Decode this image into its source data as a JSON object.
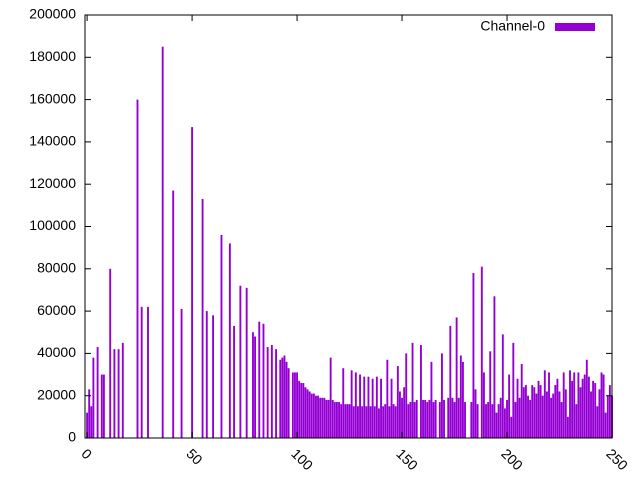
{
  "chart_data": {
    "type": "bar",
    "x": [
      0,
      1,
      2,
      3,
      4,
      5,
      6,
      7,
      8,
      9,
      10,
      11,
      12,
      13,
      14,
      15,
      16,
      17,
      18,
      19,
      20,
      21,
      22,
      23,
      24,
      25,
      26,
      27,
      28,
      29,
      30,
      31,
      32,
      33,
      34,
      35,
      36,
      37,
      38,
      39,
      40,
      41,
      42,
      43,
      44,
      45,
      46,
      47,
      48,
      49,
      50,
      51,
      52,
      53,
      54,
      55,
      56,
      57,
      58,
      59,
      60,
      61,
      62,
      63,
      64,
      65,
      66,
      67,
      68,
      69,
      70,
      71,
      72,
      73,
      74,
      75,
      76,
      77,
      78,
      79,
      80,
      81,
      82,
      83,
      84,
      85,
      86,
      87,
      88,
      89,
      90,
      91,
      92,
      93,
      94,
      95,
      96,
      97,
      98,
      99,
      100,
      101,
      102,
      103,
      104,
      105,
      106,
      107,
      108,
      109,
      110,
      111,
      112,
      113,
      114,
      115,
      116,
      117,
      118,
      119,
      120,
      121,
      122,
      123,
      124,
      125,
      126,
      127,
      128,
      129,
      130,
      131,
      132,
      133,
      134,
      135,
      136,
      137,
      138,
      139,
      140,
      141,
      142,
      143,
      144,
      145,
      146,
      147,
      148,
      149,
      150,
      151,
      152,
      153,
      154,
      155,
      156,
      157,
      158,
      159,
      160,
      161,
      162,
      163,
      164,
      165,
      166,
      167,
      168,
      169,
      170,
      171,
      172,
      173,
      174,
      175,
      176,
      177,
      178,
      179,
      180,
      181,
      182,
      183,
      184,
      185,
      186,
      187,
      188,
      189,
      190,
      191,
      192,
      193,
      194,
      195,
      196,
      197,
      198,
      199,
      200,
      201,
      202,
      203,
      204,
      205,
      206,
      207,
      208,
      209,
      210,
      211,
      212,
      213,
      214,
      215,
      216,
      217,
      218,
      219,
      220,
      221,
      222,
      223,
      224,
      225,
      226,
      227,
      228,
      229,
      230,
      231,
      232,
      233,
      234,
      235,
      236,
      237,
      238,
      239,
      240,
      241,
      242,
      243,
      244,
      245,
      246,
      247,
      248,
      249,
      250
    ],
    "series": [
      {
        "name": "Channel-0",
        "color": "#9400d3",
        "values": [
          12000,
          23000,
          15000,
          38000,
          0,
          43000,
          0,
          30000,
          30000,
          0,
          0,
          80000,
          0,
          42000,
          0,
          42000,
          0,
          45000,
          0,
          0,
          0,
          0,
          0,
          0,
          160000,
          0,
          62000,
          0,
          0,
          62000,
          0,
          0,
          0,
          0,
          0,
          0,
          185000,
          0,
          0,
          0,
          0,
          117000,
          0,
          0,
          0,
          61000,
          0,
          0,
          0,
          0,
          147000,
          0,
          0,
          0,
          0,
          113000,
          0,
          60000,
          0,
          0,
          58000,
          0,
          0,
          0,
          96000,
          0,
          0,
          0,
          92000,
          0,
          53000,
          0,
          0,
          72000,
          0,
          0,
          71000,
          0,
          0,
          50000,
          48000,
          0,
          55000,
          0,
          54000,
          0,
          43000,
          0,
          44000,
          0,
          42000,
          0,
          37000,
          38000,
          39000,
          36000,
          33000,
          0,
          31000,
          31000,
          31000,
          27000,
          26000,
          26000,
          24000,
          23000,
          22000,
          21000,
          21000,
          20000,
          20000,
          19000,
          19000,
          19000,
          18000,
          18000,
          38000,
          18000,
          17000,
          17000,
          17000,
          16000,
          33000,
          16000,
          16000,
          16000,
          32000,
          15000,
          31000,
          15000,
          30000,
          15000,
          29000,
          15000,
          29000,
          15000,
          28000,
          15000,
          29000,
          14000,
          28000,
          15000,
          16000,
          37000,
          15000,
          28000,
          16000,
          15000,
          34000,
          22000,
          19000,
          24000,
          40000,
          16000,
          17000,
          45000,
          17000,
          18000,
          0,
          44000,
          18000,
          18000,
          17000,
          18000,
          36000,
          17000,
          18000,
          0,
          17000,
          40000,
          18000,
          0,
          19000,
          53000,
          19000,
          17000,
          57000,
          19000,
          39000,
          36000,
          17000,
          0,
          0,
          17000,
          78000,
          23000,
          16000,
          0,
          81000,
          31000,
          16000,
          17000,
          41000,
          16000,
          67000,
          12000,
          16000,
          19000,
          49000,
          14000,
          18000,
          30000,
          10000,
          45000,
          17000,
          28000,
          19000,
          35000,
          24000,
          25000,
          20000,
          18000,
          25000,
          24000,
          21000,
          27000,
          25000,
          20000,
          32000,
          22000,
          31000,
          19000,
          21000,
          25000,
          28000,
          22000,
          17000,
          31000,
          23000,
          10000,
          32000,
          27000,
          31000,
          16000,
          31000,
          24000,
          28000,
          30000,
          37000,
          29000,
          22000,
          27000,
          26000,
          15000,
          23000,
          31000,
          30000,
          12000,
          20000,
          25000,
          20000
        ]
      }
    ],
    "xlim": [
      -1,
      250
    ],
    "xticks": [
      0,
      50,
      100,
      150,
      200,
      250
    ],
    "ylim": [
      0,
      200000
    ],
    "yticks": [
      0,
      20000,
      40000,
      60000,
      80000,
      100000,
      120000,
      140000,
      160000,
      180000,
      200000
    ],
    "grid": false,
    "legend": "top-right"
  }
}
